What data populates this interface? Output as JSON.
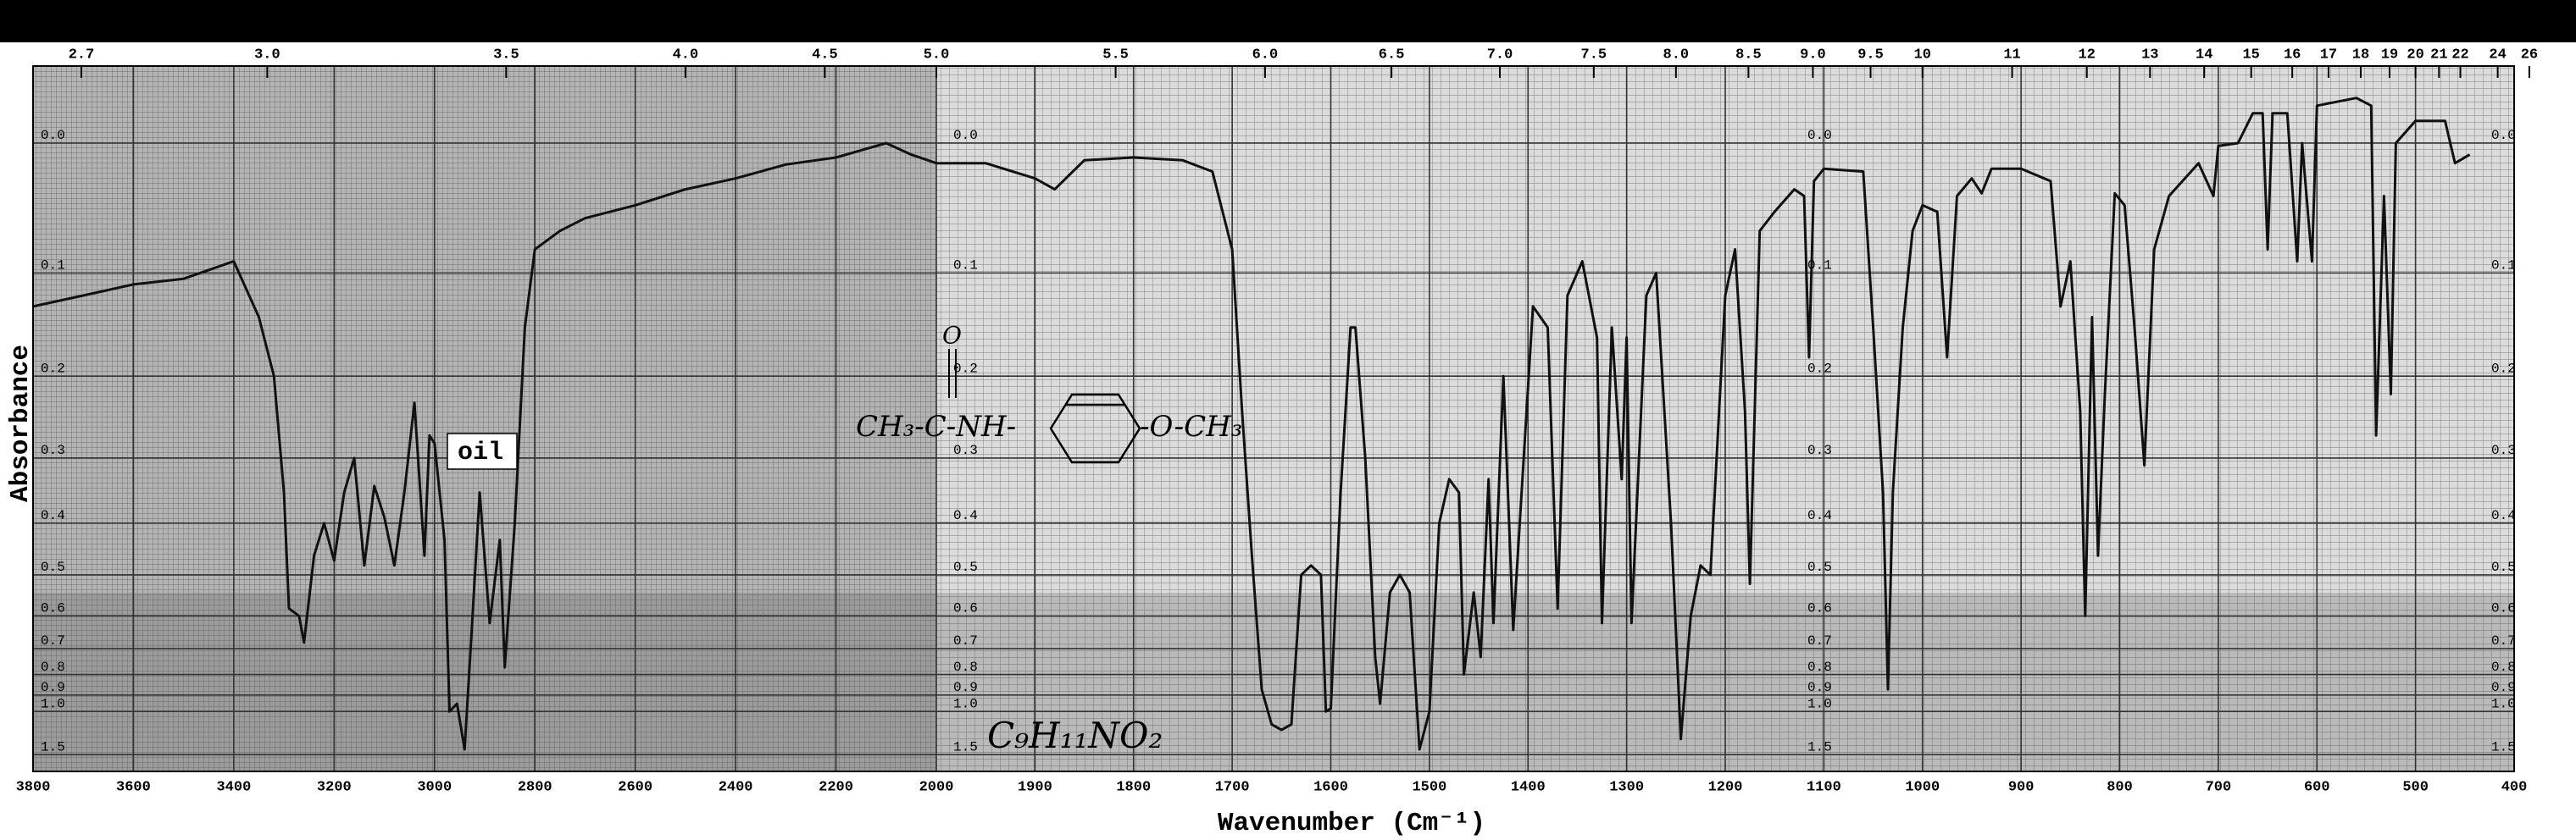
{
  "chart_data": {
    "type": "line",
    "x_label": "Wavenumber (Cm⁻¹)",
    "y_label": "Absorbance",
    "annotations": {
      "sample": "oil",
      "formula": "C₉H₁₁NO₂",
      "structure_left": "CH₃-C-NH-",
      "structure_carbonyl": "O",
      "structure_right": "-O-CH₃"
    },
    "xlim": [
      3800,
      400
    ],
    "xbreak": 2000,
    "ylim": [
      -0.05,
      2.3
    ],
    "grid": true,
    "color": "#111111",
    "xticks": [
      3800,
      3600,
      3400,
      3200,
      3000,
      2800,
      2600,
      2400,
      2200,
      2000,
      1900,
      1800,
      1700,
      1600,
      1500,
      1400,
      1300,
      1200,
      1100,
      1000,
      900,
      800,
      700,
      600,
      500,
      400
    ],
    "x2ticks": [
      2.7,
      {
        "value": 3,
        "label": "3.0"
      },
      3.5,
      {
        "value": 4,
        "label": "4.0"
      },
      4.5,
      {
        "value": 5,
        "label": "5.0"
      },
      5.5,
      {
        "value": 6,
        "label": "6.0"
      },
      6.5,
      {
        "value": 7,
        "label": "7.0"
      },
      7.5,
      {
        "value": 8,
        "label": "8.0"
      },
      8.5,
      {
        "value": 9,
        "label": "9.0"
      },
      9.5,
      10,
      11,
      12,
      13,
      14,
      15,
      16,
      17,
      18,
      19,
      20,
      21,
      22,
      24,
      26
    ],
    "yticks": [
      {
        "value": 0,
        "label": "0.0"
      },
      0.1,
      0.2,
      0.3,
      0.4,
      0.5,
      0.6,
      0.7,
      0.8,
      0.9,
      {
        "value": 1,
        "label": "1.0"
      },
      1.5
    ],
    "x": [
      3800,
      3700,
      3600,
      3500,
      3400,
      3350,
      3320,
      3300,
      3290,
      3270,
      3260,
      3240,
      3220,
      3200,
      3180,
      3160,
      3140,
      3120,
      3100,
      3080,
      3060,
      3040,
      3020,
      3010,
      3000,
      2980,
      2970,
      2955,
      2940,
      2925,
      2910,
      2890,
      2870,
      2860,
      2840,
      2820,
      2800,
      2750,
      2700,
      2600,
      2500,
      2400,
      2300,
      2200,
      2100,
      2050,
      2000,
      1950,
      1900,
      1880,
      1850,
      1800,
      1750,
      1720,
      1700,
      1690,
      1680,
      1670,
      1660,
      1650,
      1640,
      1630,
      1620,
      1610,
      1605,
      1600,
      1590,
      1580,
      1575,
      1565,
      1555,
      1550,
      1540,
      1530,
      1520,
      1510,
      1500,
      1490,
      1480,
      1470,
      1465,
      1455,
      1448,
      1440,
      1435,
      1425,
      1415,
      1395,
      1380,
      1370,
      1360,
      1345,
      1330,
      1325,
      1315,
      1305,
      1300,
      1295,
      1280,
      1270,
      1255,
      1245,
      1235,
      1225,
      1215,
      1200,
      1190,
      1180,
      1175,
      1165,
      1150,
      1130,
      1120,
      1115,
      1110,
      1100,
      1060,
      1050,
      1040,
      1035,
      1030,
      1020,
      1010,
      1000,
      985,
      975,
      965,
      950,
      940,
      930,
      900,
      870,
      860,
      850,
      840,
      835,
      828,
      822,
      815,
      805,
      795,
      785,
      775,
      765,
      750,
      720,
      705,
      700,
      680,
      665,
      655,
      650,
      645,
      630,
      620,
      615,
      605,
      600,
      560,
      545,
      540,
      532,
      525,
      520,
      500,
      470,
      460,
      445
    ],
    "values": [
      0.13,
      0.12,
      0.11,
      0.105,
      0.09,
      0.14,
      0.2,
      0.35,
      0.58,
      0.6,
      0.68,
      0.46,
      0.4,
      0.47,
      0.35,
      0.3,
      0.48,
      0.34,
      0.39,
      0.48,
      0.35,
      0.23,
      0.46,
      0.27,
      0.28,
      0.43,
      1.0,
      0.95,
      1.4,
      0.62,
      0.35,
      0.62,
      0.43,
      0.77,
      0.4,
      0.15,
      0.08,
      0.065,
      0.055,
      0.045,
      0.033,
      0.025,
      0.015,
      0.01,
      0,
      0.008,
      0.014,
      0.014,
      0.025,
      0.033,
      0.012,
      0.01,
      0.012,
      0.02,
      0.08,
      0.24,
      0.46,
      0.87,
      1.1,
      1.15,
      1.1,
      0.5,
      0.48,
      0.5,
      1.0,
      0.98,
      0.35,
      0.15,
      0.15,
      0.3,
      0.73,
      0.95,
      0.54,
      0.5,
      0.54,
      1.4,
      1.0,
      0.4,
      0.33,
      0.35,
      0.8,
      0.54,
      0.73,
      0.33,
      0.62,
      0.2,
      0.64,
      0.13,
      0.15,
      0.58,
      0.12,
      0.09,
      0.16,
      0.62,
      0.15,
      0.33,
      0.16,
      0.62,
      0.12,
      0.1,
      0.4,
      1.25,
      0.6,
      0.48,
      0.5,
      0.12,
      0.08,
      0.24,
      0.52,
      0.065,
      0.05,
      0.033,
      0.038,
      0.18,
      0.027,
      0.018,
      0.02,
      0.15,
      0.35,
      0.87,
      0.35,
      0.15,
      0.065,
      0.045,
      0.05,
      0.18,
      0.038,
      0.025,
      0.036,
      0.018,
      0.018,
      0.027,
      0.13,
      0.09,
      0.24,
      0.6,
      0.14,
      0.46,
      0.22,
      0.036,
      0.045,
      0.15,
      0.31,
      0.08,
      0.038,
      0.014,
      0.038,
      0.002,
      0,
      -0.02,
      -0.02,
      0.08,
      -0.02,
      -0.02,
      0.09,
      0,
      0.09,
      -0.025,
      -0.03,
      -0.025,
      0.27,
      0.038,
      0.22,
      0,
      -0.015,
      -0.015,
      0.014,
      0.008
    ]
  }
}
